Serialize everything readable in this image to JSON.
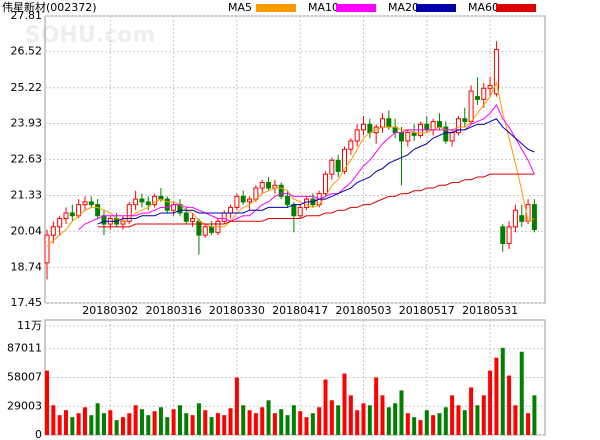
{
  "chart_data": [
    {
      "type": "candlestick",
      "title": "伟星新材(002372)",
      "watermark": "SOHU.com",
      "up_color": "#ff0000",
      "down_color": "#008000",
      "grid": true,
      "categories": [
        null,
        null,
        null,
        null,
        null,
        null,
        null,
        null,
        null,
        null,
        "20180302",
        null,
        null,
        null,
        null,
        null,
        null,
        null,
        null,
        null,
        "20180316",
        null,
        null,
        null,
        null,
        null,
        null,
        null,
        null,
        null,
        "20180330",
        null,
        null,
        null,
        null,
        null,
        null,
        null,
        null,
        null,
        "20180417",
        null,
        null,
        null,
        null,
        null,
        null,
        null,
        null,
        null,
        "20180503",
        null,
        null,
        null,
        null,
        null,
        null,
        null,
        null,
        null,
        "20180517",
        null,
        null,
        null,
        null,
        null,
        null,
        null,
        null,
        null,
        "20180531",
        null,
        null,
        null,
        null,
        null,
        null,
        null
      ],
      "open": [
        18.9,
        19.9,
        20.2,
        20.5,
        20.7,
        20.6,
        21.0,
        21.1,
        21.0,
        20.6,
        20.3,
        20.5,
        20.3,
        20.4,
        21.0,
        21.2,
        21.1,
        21.0,
        21.3,
        21.2,
        20.8,
        21.0,
        20.7,
        20.4,
        20.4,
        19.9,
        20.2,
        20.0,
        20.4,
        20.7,
        20.9,
        21.3,
        21.1,
        21.2,
        21.6,
        21.8,
        21.6,
        21.7,
        21.3,
        21.0,
        20.6,
        20.9,
        21.2,
        21.0,
        21.4,
        22.1,
        22.6,
        22.2,
        23.0,
        23.3,
        23.7,
        23.9,
        23.6,
        23.8,
        24.1,
        23.8,
        23.6,
        23.3,
        23.6,
        23.5,
        23.9,
        23.7,
        24.0,
        23.8,
        23.3,
        23.6,
        24.1,
        24.0,
        24.9,
        24.8,
        25.2,
        25.0,
        20.2,
        19.6,
        20.2,
        20.6,
        20.4,
        21.0
      ],
      "high": [
        20.1,
        20.4,
        20.6,
        20.9,
        21.0,
        21.2,
        21.3,
        21.3,
        21.2,
        20.8,
        20.6,
        20.7,
        20.6,
        21.1,
        21.5,
        21.4,
        21.3,
        21.4,
        21.6,
        21.3,
        21.1,
        21.2,
        20.9,
        20.7,
        20.5,
        20.3,
        20.4,
        20.5,
        20.8,
        21.0,
        21.4,
        21.5,
        21.3,
        21.7,
        21.9,
        22.0,
        21.9,
        21.8,
        21.5,
        21.1,
        21.0,
        21.3,
        21.4,
        21.5,
        22.2,
        22.7,
        22.8,
        23.1,
        23.4,
        23.9,
        24.2,
        24.1,
        23.9,
        24.3,
        24.4,
        24.1,
        23.8,
        23.7,
        23.9,
        24.0,
        24.2,
        24.1,
        24.3,
        24.0,
        23.7,
        24.2,
        24.5,
        25.3,
        25.6,
        25.4,
        25.6,
        26.9,
        20.3,
        20.4,
        21.0,
        21.0,
        21.2,
        21.2
      ],
      "low": [
        18.3,
        19.6,
        19.9,
        20.3,
        20.4,
        20.5,
        20.8,
        20.9,
        20.5,
        19.9,
        20.1,
        20.2,
        20.1,
        20.3,
        20.8,
        20.9,
        20.8,
        20.9,
        21.1,
        20.7,
        20.6,
        20.6,
        20.3,
        20.2,
        19.2,
        19.8,
        19.9,
        19.9,
        20.3,
        20.5,
        20.8,
        21.0,
        20.8,
        21.1,
        21.4,
        21.5,
        21.4,
        21.2,
        20.9,
        20.0,
        20.5,
        20.8,
        20.9,
        20.9,
        21.3,
        21.9,
        22.0,
        22.1,
        22.8,
        23.1,
        23.5,
        23.4,
        23.2,
        23.6,
        23.7,
        23.4,
        21.7,
        23.1,
        23.3,
        23.4,
        23.6,
        23.5,
        23.7,
        23.2,
        23.1,
        23.5,
        23.8,
        23.9,
        24.6,
        24.5,
        24.9,
        24.9,
        19.3,
        19.4,
        20.0,
        20.2,
        20.3,
        20.0
      ],
      "close": [
        19.9,
        20.2,
        20.5,
        20.7,
        20.6,
        21.0,
        21.1,
        21.0,
        20.6,
        20.3,
        20.5,
        20.3,
        20.4,
        21.0,
        21.2,
        21.1,
        21.0,
        21.3,
        21.2,
        20.8,
        21.0,
        20.7,
        20.4,
        20.5,
        19.9,
        20.2,
        20.0,
        20.4,
        20.7,
        20.9,
        21.3,
        21.1,
        21.2,
        21.6,
        21.8,
        21.6,
        21.7,
        21.3,
        21.0,
        20.6,
        20.9,
        21.2,
        21.0,
        21.4,
        22.1,
        22.6,
        22.2,
        23.0,
        23.3,
        23.7,
        23.9,
        23.6,
        23.8,
        24.1,
        23.8,
        23.6,
        23.3,
        23.6,
        23.5,
        23.9,
        23.7,
        24.0,
        23.8,
        23.3,
        23.6,
        24.1,
        24.0,
        25.1,
        24.8,
        25.2,
        25.3,
        26.6,
        19.6,
        20.2,
        20.8,
        20.4,
        21.0,
        20.1
      ],
      "series": [
        {
          "name": "MA5",
          "color": "#ff9900",
          "values": [
            19.5,
            19.7,
            19.9,
            20.1,
            20.4,
            20.6,
            20.8,
            20.9,
            20.9,
            20.8,
            20.7,
            20.5,
            20.4,
            20.5,
            20.7,
            20.8,
            20.9,
            21.1,
            21.2,
            21.1,
            21.1,
            21.0,
            20.8,
            20.7,
            20.4,
            20.3,
            20.2,
            20.2,
            20.2,
            20.4,
            20.7,
            20.9,
            21.0,
            21.2,
            21.4,
            21.5,
            21.6,
            21.6,
            21.5,
            21.2,
            21.1,
            21.0,
            20.9,
            21.0,
            21.3,
            21.7,
            21.9,
            22.3,
            22.6,
            23.0,
            23.4,
            23.6,
            23.7,
            23.8,
            23.8,
            23.8,
            23.7,
            23.7,
            23.6,
            23.6,
            23.6,
            23.7,
            23.8,
            23.7,
            23.7,
            23.8,
            23.8,
            24.0,
            24.3,
            24.6,
            24.9,
            25.4,
            24.3,
            23.4,
            22.5,
            21.5,
            20.4,
            20.5
          ]
        },
        {
          "name": "MA10",
          "color": "#ff00ff",
          "values": [
            null,
            null,
            null,
            null,
            null,
            20.1,
            20.3,
            20.4,
            20.5,
            20.6,
            20.6,
            20.6,
            20.6,
            20.6,
            20.6,
            20.7,
            20.7,
            20.8,
            20.9,
            20.9,
            21.0,
            21.0,
            20.9,
            20.9,
            20.8,
            20.7,
            20.6,
            20.5,
            20.5,
            20.4,
            20.5,
            20.6,
            20.6,
            20.8,
            21.0,
            21.1,
            21.3,
            21.4,
            21.4,
            21.3,
            21.3,
            21.3,
            21.3,
            21.2,
            21.3,
            21.4,
            21.4,
            21.6,
            21.8,
            22.1,
            22.4,
            22.6,
            22.9,
            23.2,
            23.4,
            23.6,
            23.6,
            23.7,
            23.7,
            23.7,
            23.7,
            23.7,
            23.7,
            23.7,
            23.7,
            23.7,
            23.7,
            23.9,
            24.0,
            24.1,
            24.3,
            24.6,
            24.1,
            23.8,
            23.4,
            23.0,
            22.6,
            22.1
          ]
        },
        {
          "name": "MA20",
          "color": "#0000aa",
          "values": [
            null,
            null,
            null,
            null,
            null,
            null,
            null,
            null,
            20.3,
            20.4,
            20.4,
            20.4,
            20.5,
            20.5,
            20.5,
            20.6,
            20.6,
            20.6,
            20.7,
            20.7,
            20.7,
            20.8,
            20.8,
            20.8,
            20.7,
            20.7,
            20.7,
            20.7,
            20.7,
            20.7,
            20.7,
            20.7,
            20.8,
            20.8,
            20.8,
            20.9,
            20.9,
            20.9,
            20.9,
            21.0,
            21.0,
            21.1,
            21.1,
            21.2,
            21.2,
            21.3,
            21.4,
            21.5,
            21.6,
            21.8,
            21.9,
            22.0,
            22.2,
            22.3,
            22.5,
            22.6,
            22.7,
            22.8,
            23.0,
            23.1,
            23.2,
            23.4,
            23.5,
            23.6,
            23.6,
            23.7,
            23.7,
            23.8,
            23.9,
            23.9,
            24.0,
            24.1,
            23.8,
            23.6,
            23.4,
            23.2,
            23.0,
            22.9
          ]
        },
        {
          "name": "MA60",
          "color": "#dd0000",
          "values": [
            null,
            null,
            null,
            null,
            null,
            null,
            null,
            null,
            20.2,
            20.2,
            20.2,
            20.2,
            20.2,
            20.2,
            20.3,
            20.3,
            20.3,
            20.3,
            20.3,
            20.3,
            20.3,
            20.3,
            20.3,
            20.3,
            20.3,
            20.3,
            20.3,
            20.3,
            20.3,
            20.4,
            20.4,
            20.4,
            20.4,
            20.4,
            20.4,
            20.5,
            20.5,
            20.5,
            20.5,
            20.5,
            20.5,
            20.6,
            20.6,
            20.6,
            20.7,
            20.7,
            20.8,
            20.8,
            20.9,
            20.9,
            21.0,
            21.0,
            21.1,
            21.2,
            21.3,
            21.3,
            21.4,
            21.4,
            21.5,
            21.5,
            21.6,
            21.6,
            21.7,
            21.7,
            21.8,
            21.8,
            21.9,
            21.9,
            22.0,
            22.0,
            22.1,
            22.1,
            22.1,
            22.1,
            22.1,
            22.1,
            22.1,
            22.1
          ]
        }
      ],
      "ylim": [
        17.45,
        27.81
      ],
      "yticks": [
        17.45,
        18.74,
        20.04,
        21.33,
        22.63,
        23.93,
        25.22,
        26.52,
        27.81
      ]
    },
    {
      "type": "bar",
      "grid": true,
      "values": [
        65000,
        30000,
        20000,
        25000,
        18000,
        22000,
        28000,
        20000,
        32000,
        22000,
        25000,
        15000,
        18000,
        22000,
        30000,
        26000,
        20000,
        24000,
        28000,
        18000,
        26000,
        30000,
        22000,
        20000,
        32000,
        25000,
        18000,
        22000,
        20000,
        27000,
        58000,
        30000,
        25000,
        22000,
        28000,
        35000,
        22000,
        26000,
        20000,
        30000,
        24000,
        18000,
        22000,
        28000,
        56000,
        35000,
        30000,
        62000,
        40000,
        25000,
        32000,
        30000,
        58000,
        40000,
        28000,
        32000,
        45000,
        22000,
        18000,
        15000,
        25000,
        20000,
        22000,
        28000,
        40000,
        30000,
        25000,
        48000,
        30000,
        40000,
        65000,
        78000,
        88000,
        60000,
        30000,
        84000,
        22000,
        40000
      ],
      "ylim": [
        0,
        116014
      ],
      "yticks": [
        0,
        29003,
        58007,
        87011,
        {
          "value": 110000,
          "label": "11万"
        }
      ]
    }
  ]
}
